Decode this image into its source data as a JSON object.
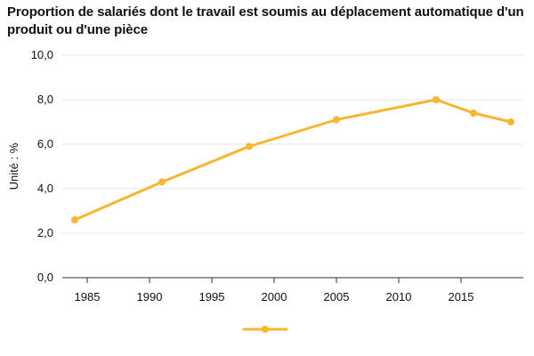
{
  "chart_data": {
    "type": "line",
    "title": "Proportion de salariés dont le travail est soumis au déplacement automatique d'un produit ou d'une pièce",
    "xlabel": "",
    "ylabel": "Unité : %",
    "x": [
      1984,
      1991,
      1998,
      2005,
      2013,
      2016,
      2019
    ],
    "series": [
      {
        "name": "",
        "values": [
          2.6,
          4.3,
          5.9,
          7.1,
          8.0,
          7.4,
          7.0
        ]
      }
    ],
    "xlim": [
      1983,
      2020
    ],
    "ylim": [
      0,
      10
    ],
    "xticks": [
      1985,
      1990,
      1995,
      2000,
      2005,
      2010,
      2015
    ],
    "xtick_labels": [
      "1985",
      "1990",
      "1995",
      "2000",
      "2005",
      "2010",
      "2015"
    ],
    "yticks": [
      0,
      2,
      4,
      6,
      8,
      10
    ],
    "ytick_labels": [
      "0,0",
      "2,0",
      "4,0",
      "6,0",
      "8,0",
      "10,0"
    ],
    "grid": "horizontal",
    "legend": "bottom-center",
    "colors": {
      "series": "#F7B530",
      "grid": "#e6e6e6",
      "axis": "#333333",
      "text": "#111111"
    }
  }
}
